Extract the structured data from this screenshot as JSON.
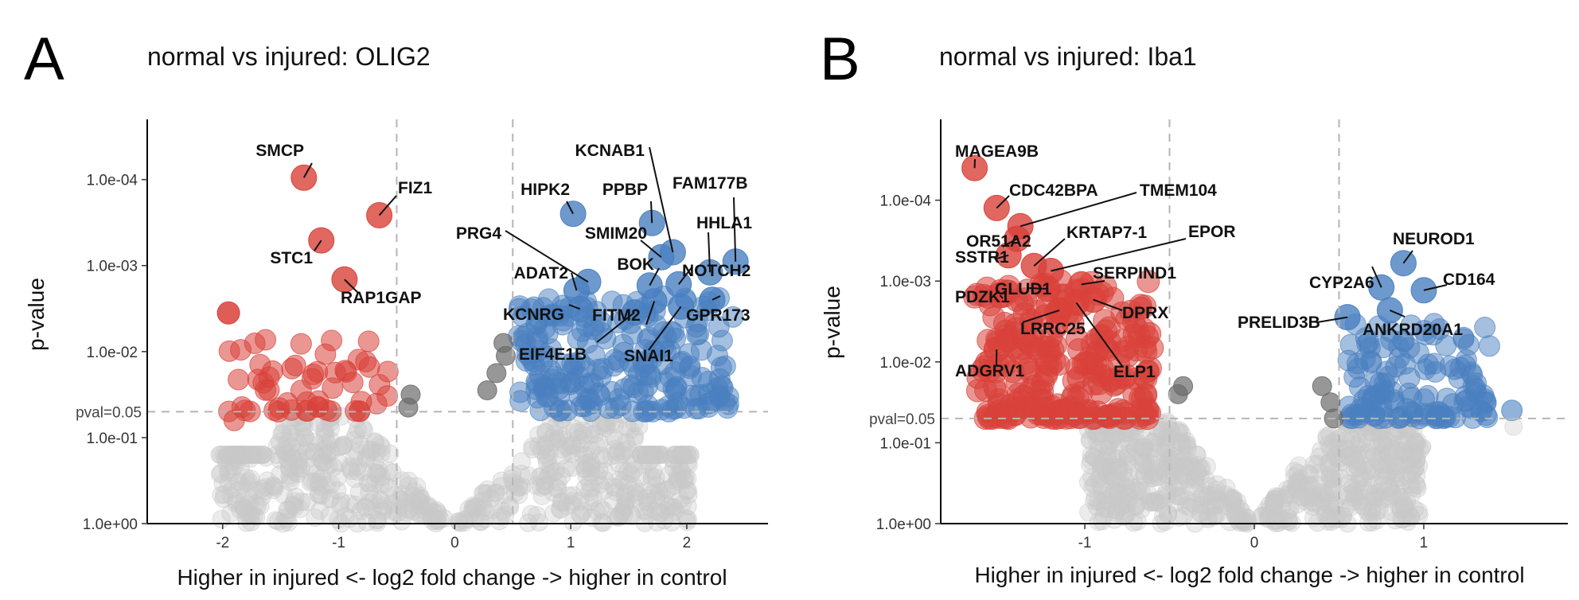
{
  "chart_data": [
    {
      "type": "scatter",
      "panel_letter": "A",
      "title": "normal vs injured: OLIG2",
      "xlabel": "Higher in injured <- log2 fold change -> higher in control",
      "ylabel": "p-value",
      "x_ticks": [
        -2,
        -1,
        0,
        1,
        2
      ],
      "x_tick_labels": [
        "-2",
        "-1",
        "0",
        "1",
        "2"
      ],
      "xlim": [
        -2.65,
        2.7
      ],
      "y_scale": "-log10",
      "y_ticks": [
        0.0001,
        0.001,
        0.01,
        0.1,
        1
      ],
      "y_tick_labels": [
        "1.0e-04",
        "1.0e-03",
        "1.0e-02",
        "1.0e-01",
        "1.0e+00"
      ],
      "ylim_neglog10": [
        0,
        4.7
      ],
      "fc_threshold": 0.5,
      "pval_threshold": 0.05,
      "pval_label": "pval=0.05",
      "grid": false,
      "legend": "none",
      "colors": {
        "down": "#d9413a",
        "up": "#4a80c0",
        "nonsig_fc": "#6b6b6b",
        "nonsig": "#c8c8c8"
      },
      "labeled_points": [
        {
          "gene": "SMCP",
          "x": -1.3,
          "p": 9.5e-05
        },
        {
          "gene": "FIZ1",
          "x": -0.65,
          "p": 0.00026
        },
        {
          "gene": "STC1",
          "x": -1.15,
          "p": 0.00051
        },
        {
          "gene": "RAP1GAP",
          "x": -0.95,
          "p": 0.00145
        },
        {
          "gene": "HIPK2",
          "x": 1.02,
          "p": 0.00025
        },
        {
          "gene": "PPBP",
          "x": 1.7,
          "p": 0.00032
        },
        {
          "gene": "KCNAB1",
          "x": 1.88,
          "p": 0.0007
        },
        {
          "gene": "FAM177B",
          "x": 2.42,
          "p": 0.0009
        },
        {
          "gene": "HHLA1",
          "x": 2.2,
          "p": 0.0012
        },
        {
          "gene": "SMIM20",
          "x": 1.78,
          "p": 0.0008
        },
        {
          "gene": "PRG4",
          "x": 1.15,
          "p": 0.00155
        },
        {
          "gene": "ADAT2",
          "x": 1.05,
          "p": 0.00195
        },
        {
          "gene": "BOK",
          "x": 1.68,
          "p": 0.0017
        },
        {
          "gene": "NOTCH2",
          "x": 1.93,
          "p": 0.00165
        },
        {
          "gene": "KCNRG",
          "x": 1.08,
          "p": 0.0032
        },
        {
          "gene": "FITM2",
          "x": 1.72,
          "p": 0.0026
        },
        {
          "gene": "GPR173",
          "x": 2.22,
          "p": 0.0025
        },
        {
          "gene": "EIF4E1B",
          "x": 1.55,
          "p": 0.0035
        },
        {
          "gene": "SNAI1",
          "x": 1.95,
          "p": 0.003
        }
      ],
      "point_summary": {
        "down_significant": 55,
        "up_significant": 220,
        "nonsignificant": 650
      }
    },
    {
      "type": "scatter",
      "panel_letter": "B",
      "title": "normal vs injured: Iba1",
      "xlabel": "Higher in injured <- log2 fold change -> higher in control",
      "ylabel": "p-value",
      "x_ticks": [
        -1,
        0,
        1
      ],
      "x_tick_labels": [
        "-1",
        "0",
        "1"
      ],
      "xlim": [
        -1.85,
        1.85
      ],
      "y_scale": "-log10",
      "y_ticks": [
        0.0001,
        0.001,
        0.01,
        0.1,
        1
      ],
      "y_tick_labels": [
        "1.0e-04",
        "1.0e-03",
        "1.0e-02",
        "1.0e-01",
        "1.0e+00"
      ],
      "ylim_neglog10": [
        0,
        5.0
      ],
      "fc_threshold": 0.5,
      "pval_threshold": 0.05,
      "pval_label": "pval=0.05",
      "grid": false,
      "legend": "none",
      "colors": {
        "down": "#d9413a",
        "up": "#4a80c0",
        "nonsig_fc": "#6b6b6b",
        "nonsig": "#c8c8c8"
      },
      "labeled_points": [
        {
          "gene": "MAGEA9B",
          "x": -1.65,
          "p": 4e-05
        },
        {
          "gene": "CDC42BPA",
          "x": -1.52,
          "p": 0.000125
        },
        {
          "gene": "TMEM104",
          "x": -1.38,
          "p": 0.00021
        },
        {
          "gene": "OR51A2",
          "x": -1.4,
          "p": 0.0003
        },
        {
          "gene": "SSTR1",
          "x": -1.45,
          "p": 0.00048
        },
        {
          "gene": "KRTAP7-1",
          "x": -1.3,
          "p": 0.00065
        },
        {
          "gene": "EPOR",
          "x": -1.2,
          "p": 0.00075
        },
        {
          "gene": "SERPIND1",
          "x": -1.02,
          "p": 0.0011
        },
        {
          "gene": "PDZK1",
          "x": -1.5,
          "p": 0.0015
        },
        {
          "gene": "GLUD1",
          "x": -1.22,
          "p": 0.00125
        },
        {
          "gene": "DPRX",
          "x": -0.95,
          "p": 0.0017
        },
        {
          "gene": "LRRC25",
          "x": -1.15,
          "p": 0.0023
        },
        {
          "gene": "ELP1",
          "x": -1.05,
          "p": 0.00185
        },
        {
          "gene": "ADGRV1",
          "x": -1.52,
          "p": 0.007
        },
        {
          "gene": "NEUROD1",
          "x": 0.88,
          "p": 0.0006
        },
        {
          "gene": "CYP2A6",
          "x": 0.75,
          "p": 0.0012
        },
        {
          "gene": "CD164",
          "x": 1.0,
          "p": 0.0013
        },
        {
          "gene": "PRELID3B",
          "x": 0.55,
          "p": 0.0028
        },
        {
          "gene": "ANKRD20A1",
          "x": 0.8,
          "p": 0.0023
        }
      ],
      "point_summary": {
        "down_significant": 260,
        "up_significant": 130,
        "nonsignificant": 650
      }
    }
  ]
}
